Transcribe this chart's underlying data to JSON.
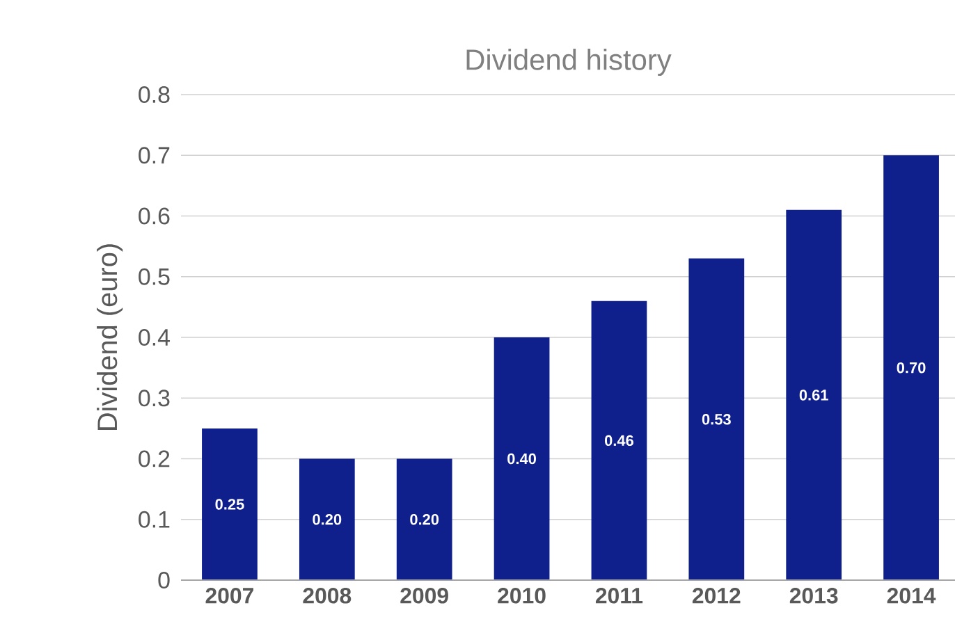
{
  "chart_data": {
    "type": "bar",
    "title": "Dividend history",
    "ylabel": "Dividend (euro)",
    "categories": [
      "2007",
      "2008",
      "2009",
      "2010",
      "2011",
      "2012",
      "2013",
      "2014"
    ],
    "values": [
      0.25,
      0.2,
      0.2,
      0.4,
      0.46,
      0.53,
      0.61,
      0.7
    ],
    "value_labels": [
      "0.25",
      "0.20",
      "0.20",
      "0.40",
      "0.46",
      "0.53",
      "0.61",
      "0.70"
    ],
    "color": "#0f1f8c",
    "ylim": [
      0,
      0.8
    ],
    "yticks": [
      0,
      0.1,
      0.2,
      0.3,
      0.4,
      0.5,
      0.6,
      0.7,
      0.8
    ],
    "grid": "y"
  }
}
